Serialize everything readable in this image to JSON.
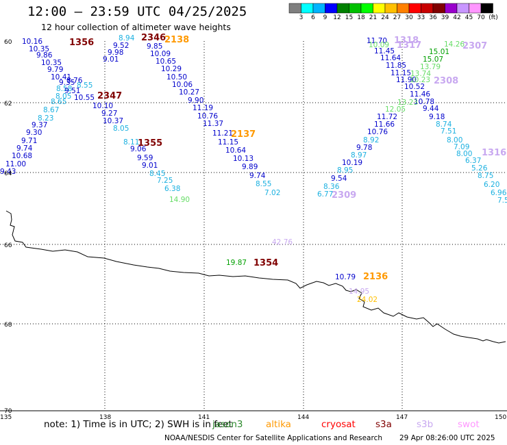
{
  "title": "12:00 – 23:59 UTC 04/25/2025",
  "subtitle": "12 hour collection of altimeter wave heights",
  "colorbar": {
    "colors": [
      "#7f7f7f",
      "#00ffff",
      "#00b4ff",
      "#0000ff",
      "#008000",
      "#00c000",
      "#00ff00",
      "#ffff00",
      "#ffc000",
      "#ff8000",
      "#ff0000",
      "#c80000",
      "#800000",
      "#9900cc",
      "#c896ff",
      "#ff96ff",
      "#000000"
    ],
    "labels": [
      "3",
      "6",
      "9",
      "12",
      "15",
      "18",
      "21",
      "24",
      "27",
      "30",
      "33",
      "36",
      "39",
      "42",
      "45",
      "70",
      "(ft)"
    ]
  },
  "axes": {
    "lat_labels": [
      "60",
      "62",
      "64",
      "66",
      "68",
      "70"
    ],
    "lon_labels": [
      "135",
      "138",
      "141",
      "144",
      "147",
      "150"
    ]
  },
  "note": {
    "text": "note:  1) Time is in UTC; 2) SWH is in feet",
    "satellites": [
      {
        "name": "jason3",
        "color": "#2e8b2e"
      },
      {
        "name": "altika",
        "color": "#ff9900"
      },
      {
        "name": "cryosat",
        "color": "#ff0000"
      },
      {
        "name": "s3a",
        "color": "#800000"
      },
      {
        "name": "s3b",
        "color": "#c8a8f0"
      },
      {
        "name": "swot",
        "color": "#ff96ff"
      }
    ]
  },
  "credit": "NOAA/NESDIS Center for Satellite Applications and Research",
  "credit_time": "29 Apr 08:26:00 UTC 2025",
  "observations": [
    {
      "v": "10.16",
      "c": "#0000cc"
    },
    {
      "v": "10.35",
      "c": "#0000cc"
    },
    {
      "v": "9.86",
      "c": "#0000cc"
    },
    {
      "v": "10.35",
      "c": "#0000cc"
    },
    {
      "v": "9.79",
      "c": "#0000cc"
    },
    {
      "v": "10.41",
      "c": "#0000cc"
    },
    {
      "v": "9.35",
      "c": "#0000cc"
    },
    {
      "v": "8.76",
      "c": "#0000cc"
    },
    {
      "v": "8.58",
      "c": "#1ab0e0"
    },
    {
      "v": "8.55",
      "c": "#1ab0e0"
    },
    {
      "v": "9.51",
      "c": "#0000cc"
    },
    {
      "v": "8.05",
      "c": "#1ab0e0"
    },
    {
      "v": "10.55",
      "c": "#0000cc"
    },
    {
      "v": "10.10",
      "c": "#0000cc"
    },
    {
      "v": "8.65",
      "c": "#1ab0e0"
    },
    {
      "v": "8.67",
      "c": "#1ab0e0"
    },
    {
      "v": "8.23",
      "c": "#1ab0e0"
    },
    {
      "v": "9.37",
      "c": "#0000cc"
    },
    {
      "v": "9.30",
      "c": "#0000cc"
    },
    {
      "v": "9.71",
      "c": "#0000cc"
    },
    {
      "v": "9.74",
      "c": "#0000cc"
    },
    {
      "v": "10.68",
      "c": "#0000cc"
    },
    {
      "v": "11.00",
      "c": "#0000cc"
    },
    {
      "v": "9.43",
      "c": "#0000cc"
    },
    {
      "v": "8.94",
      "c": "#1ab0e0"
    },
    {
      "v": "9.52",
      "c": "#0000cc"
    },
    {
      "v": "9.98",
      "c": "#0000cc"
    },
    {
      "v": "9.01",
      "c": "#0000cc"
    },
    {
      "v": "9.27",
      "c": "#0000cc"
    },
    {
      "v": "10.37",
      "c": "#0000cc"
    },
    {
      "v": "8.05",
      "c": "#1ab0e0"
    },
    {
      "v": "8.11",
      "c": "#1ab0e0"
    },
    {
      "v": "9.06",
      "c": "#0000cc"
    },
    {
      "v": "9.59",
      "c": "#0000cc"
    },
    {
      "v": "9.01",
      "c": "#0000cc"
    },
    {
      "v": "8.45",
      "c": "#1ab0e0"
    },
    {
      "v": "7.25",
      "c": "#1ab0e0"
    },
    {
      "v": "6.38",
      "c": "#1ab0e0"
    },
    {
      "v": "14.90",
      "c": "#66dd66"
    },
    {
      "v": "9.85",
      "c": "#0000cc"
    },
    {
      "v": "10.09",
      "c": "#0000cc"
    },
    {
      "v": "10.65",
      "c": "#0000cc"
    },
    {
      "v": "10.29",
      "c": "#0000cc"
    },
    {
      "v": "10.50",
      "c": "#0000cc"
    },
    {
      "v": "10.06",
      "c": "#0000cc"
    },
    {
      "v": "10.27",
      "c": "#0000cc"
    },
    {
      "v": "9.90",
      "c": "#0000cc"
    },
    {
      "v": "11.19",
      "c": "#0000cc"
    },
    {
      "v": "10.76",
      "c": "#0000cc"
    },
    {
      "v": "11.37",
      "c": "#0000cc"
    },
    {
      "v": "11.21",
      "c": "#0000cc"
    },
    {
      "v": "11.15",
      "c": "#0000cc"
    },
    {
      "v": "10.64",
      "c": "#0000cc"
    },
    {
      "v": "10.13",
      "c": "#0000cc"
    },
    {
      "v": "9.89",
      "c": "#0000cc"
    },
    {
      "v": "9.74",
      "c": "#0000cc"
    },
    {
      "v": "8.55",
      "c": "#1ab0e0"
    },
    {
      "v": "7.02",
      "c": "#1ab0e0"
    },
    {
      "v": "11.70",
      "c": "#0000cc"
    },
    {
      "v": "11.45",
      "c": "#0000cc"
    },
    {
      "v": "11.64",
      "c": "#0000cc"
    },
    {
      "v": "11.85",
      "c": "#0000cc"
    },
    {
      "v": "11.15",
      "c": "#0000cc"
    },
    {
      "v": "11.90",
      "c": "#0000cc"
    },
    {
      "v": "10.52",
      "c": "#0000cc"
    },
    {
      "v": "11.46",
      "c": "#0000cc"
    },
    {
      "v": "10.78",
      "c": "#0000cc"
    },
    {
      "v": "11.72",
      "c": "#0000cc"
    },
    {
      "v": "11.66",
      "c": "#0000cc"
    },
    {
      "v": "10.76",
      "c": "#0000cc"
    },
    {
      "v": "8.92",
      "c": "#1ab0e0"
    },
    {
      "v": "9.78",
      "c": "#0000cc"
    },
    {
      "v": "8.97",
      "c": "#1ab0e0"
    },
    {
      "v": "10.19",
      "c": "#0000cc"
    },
    {
      "v": "8.95",
      "c": "#1ab0e0"
    },
    {
      "v": "9.54",
      "c": "#0000cc"
    },
    {
      "v": "8.36",
      "c": "#1ab0e0"
    },
    {
      "v": "6.77",
      "c": "#1ab0e0"
    },
    {
      "v": "10.09",
      "c": "#66dd66"
    },
    {
      "v": "14.26",
      "c": "#66dd66"
    },
    {
      "v": "15.01",
      "c": "#00a000"
    },
    {
      "v": "15.07",
      "c": "#00a000"
    },
    {
      "v": "13.79",
      "c": "#66dd66"
    },
    {
      "v": "13.74",
      "c": "#66dd66"
    },
    {
      "v": "10.23",
      "c": "#66dd66"
    },
    {
      "v": "13.23",
      "c": "#66dd66"
    },
    {
      "v": "12.05",
      "c": "#66dd66"
    },
    {
      "v": "9.44",
      "c": "#0000cc"
    },
    {
      "v": "9.18",
      "c": "#0000cc"
    },
    {
      "v": "8.74",
      "c": "#1ab0e0"
    },
    {
      "v": "7.51",
      "c": "#1ab0e0"
    },
    {
      "v": "8.00",
      "c": "#1ab0e0"
    },
    {
      "v": "7.09",
      "c": "#1ab0e0"
    },
    {
      "v": "8.00",
      "c": "#1ab0e0"
    },
    {
      "v": "6.37",
      "c": "#1ab0e0"
    },
    {
      "v": "5.26",
      "c": "#1ab0e0"
    },
    {
      "v": "8.75",
      "c": "#1ab0e0"
    },
    {
      "v": "6.20",
      "c": "#1ab0e0"
    },
    {
      "v": "6.96",
      "c": "#1ab0e0"
    },
    {
      "v": "7.5",
      "c": "#1ab0e0"
    },
    {
      "v": "42.76",
      "c": "#c8a8f0"
    },
    {
      "v": "19.87",
      "c": "#00a000"
    },
    {
      "v": "10.79",
      "c": "#0000cc"
    },
    {
      "v": "24.02",
      "c": "#ffc000"
    },
    {
      "v": "14.95",
      "c": "#c8a8f0"
    }
  ],
  "passes": [
    {
      "v": "1356",
      "c": "#800000"
    },
    {
      "v": "2346",
      "c": "#800000"
    },
    {
      "v": "2138",
      "c": "#ff9900"
    },
    {
      "v": "2347",
      "c": "#800000"
    },
    {
      "v": "1355",
      "c": "#800000"
    },
    {
      "v": "2137",
      "c": "#ff9900"
    },
    {
      "v": "1318",
      "c": "#c8a8f0"
    },
    {
      "v": "1317",
      "c": "#c8a8f0"
    },
    {
      "v": "2307",
      "c": "#c8a8f0"
    },
    {
      "v": "2308",
      "c": "#c8a8f0"
    },
    {
      "v": "1316",
      "c": "#c8a8f0"
    },
    {
      "v": "2309",
      "c": "#c8a8f0"
    },
    {
      "v": "1354",
      "c": "#800000"
    },
    {
      "v": "2136",
      "c": "#ff9900"
    }
  ]
}
